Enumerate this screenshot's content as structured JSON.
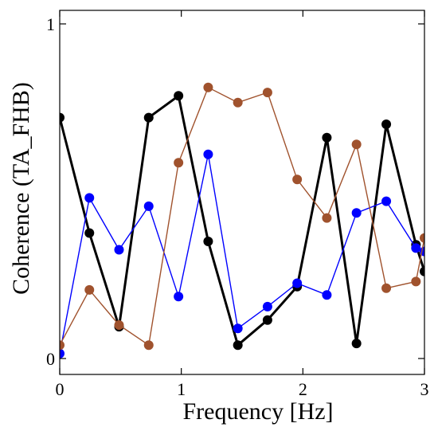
{
  "chart_data": {
    "type": "line",
    "xlabel": "Frequency [Hz]",
    "ylabel": "Coherence (TA_FHB)",
    "xlim": [
      0,
      3
    ],
    "ylim": [
      0,
      1
    ],
    "x_ticks": [
      0,
      1,
      2,
      3
    ],
    "x_tick_labels": [
      "0",
      "1",
      "2",
      "3"
    ],
    "y_ticks": [
      0,
      1
    ],
    "y_tick_labels": [
      "0",
      "1"
    ],
    "grid": false,
    "legend": "none",
    "x": [
      0,
      0.244,
      0.488,
      0.732,
      0.977,
      1.221,
      1.465,
      1.709,
      1.953,
      2.197,
      2.441,
      2.686,
      2.93,
      3.0
    ],
    "series": [
      {
        "color": "#000000",
        "x": [
          0,
          0.244,
          0.488,
          0.732,
          0.977,
          1.221,
          1.465,
          1.709,
          1.953,
          2.197,
          2.441,
          2.686,
          2.93,
          3.0
        ],
        "values": [
          0.72,
          0.375,
          0.095,
          0.72,
          0.785,
          0.35,
          0.04,
          0.115,
          0.215,
          0.66,
          0.045,
          0.7,
          0.34,
          0.26
        ]
      },
      {
        "color": "#0000ff",
        "x": [
          0,
          0.244,
          0.488,
          0.732,
          0.977,
          1.221,
          1.465,
          1.709,
          1.953,
          2.197,
          2.441,
          2.686,
          2.93,
          3.0
        ],
        "values": [
          0.015,
          0.48,
          0.325,
          0.455,
          0.185,
          0.61,
          0.09,
          0.155,
          0.225,
          0.19,
          0.435,
          0.47,
          0.33,
          0.32
        ]
      },
      {
        "color": "#a0522d",
        "x": [
          0,
          0.244,
          0.488,
          0.732,
          0.977,
          1.221,
          1.465,
          1.709,
          1.953,
          2.197,
          2.441,
          2.686,
          2.93,
          3.0
        ],
        "values": [
          0.04,
          0.205,
          0.1,
          0.04,
          0.585,
          0.81,
          0.765,
          0.795,
          0.535,
          0.42,
          0.64,
          0.21,
          0.23,
          0.36
        ]
      }
    ]
  }
}
